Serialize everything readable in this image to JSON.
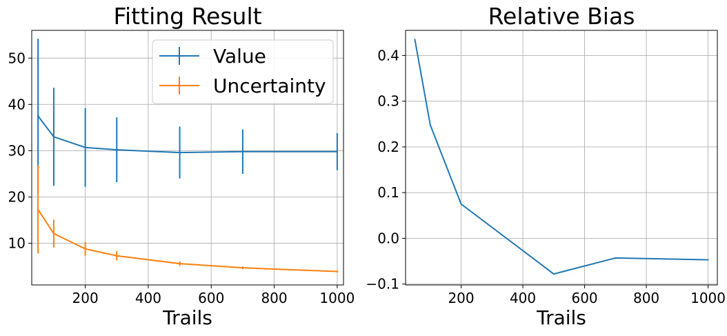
{
  "chart_data": [
    {
      "type": "line",
      "title": "Fitting Result",
      "xlabel": "Trails",
      "ylabel": "",
      "grid": true,
      "legend_position": "top-right",
      "xlim": [
        30,
        1020
      ],
      "ylim": [
        1,
        56
      ],
      "xticks": [
        200,
        400,
        600,
        800,
        1000
      ],
      "yticks": [
        10,
        20,
        30,
        40,
        50
      ],
      "x": [
        50,
        100,
        200,
        300,
        500,
        700,
        1000
      ],
      "series": [
        {
          "name": "Value",
          "color": "#1f77b4",
          "values": [
            37.5,
            33.0,
            30.7,
            30.2,
            29.6,
            29.8,
            29.8
          ],
          "errors": [
            16.7,
            10.6,
            8.5,
            7.0,
            5.6,
            4.8,
            4.0
          ]
        },
        {
          "name": "Uncertainty",
          "color": "#ff7f0e",
          "values": [
            17.3,
            12.1,
            8.8,
            7.3,
            5.6,
            4.7,
            3.9
          ],
          "errors": [
            9.5,
            3.0,
            1.5,
            1.0,
            0.5,
            0.3,
            0.2
          ]
        }
      ]
    },
    {
      "type": "line",
      "title": "Relative Bias",
      "xlabel": "Trails",
      "ylabel": "",
      "grid": true,
      "xlim": [
        20,
        1030
      ],
      "ylim": [
        -0.102,
        0.455
      ],
      "xticks": [
        200,
        400,
        600,
        800,
        1000
      ],
      "yticks": [
        -0.1,
        0.0,
        0.1,
        0.2,
        0.3,
        0.4
      ],
      "ytick_labels": [
        "−0.1",
        "0.0",
        "0.1",
        "0.2",
        "0.3",
        "0.4"
      ],
      "x": [
        50,
        100,
        200,
        500,
        700,
        1000
      ],
      "series": [
        {
          "color": "#1f77b4",
          "values": [
            0.435,
            0.248,
            0.075,
            -0.078,
            -0.043,
            -0.047
          ]
        }
      ]
    }
  ]
}
